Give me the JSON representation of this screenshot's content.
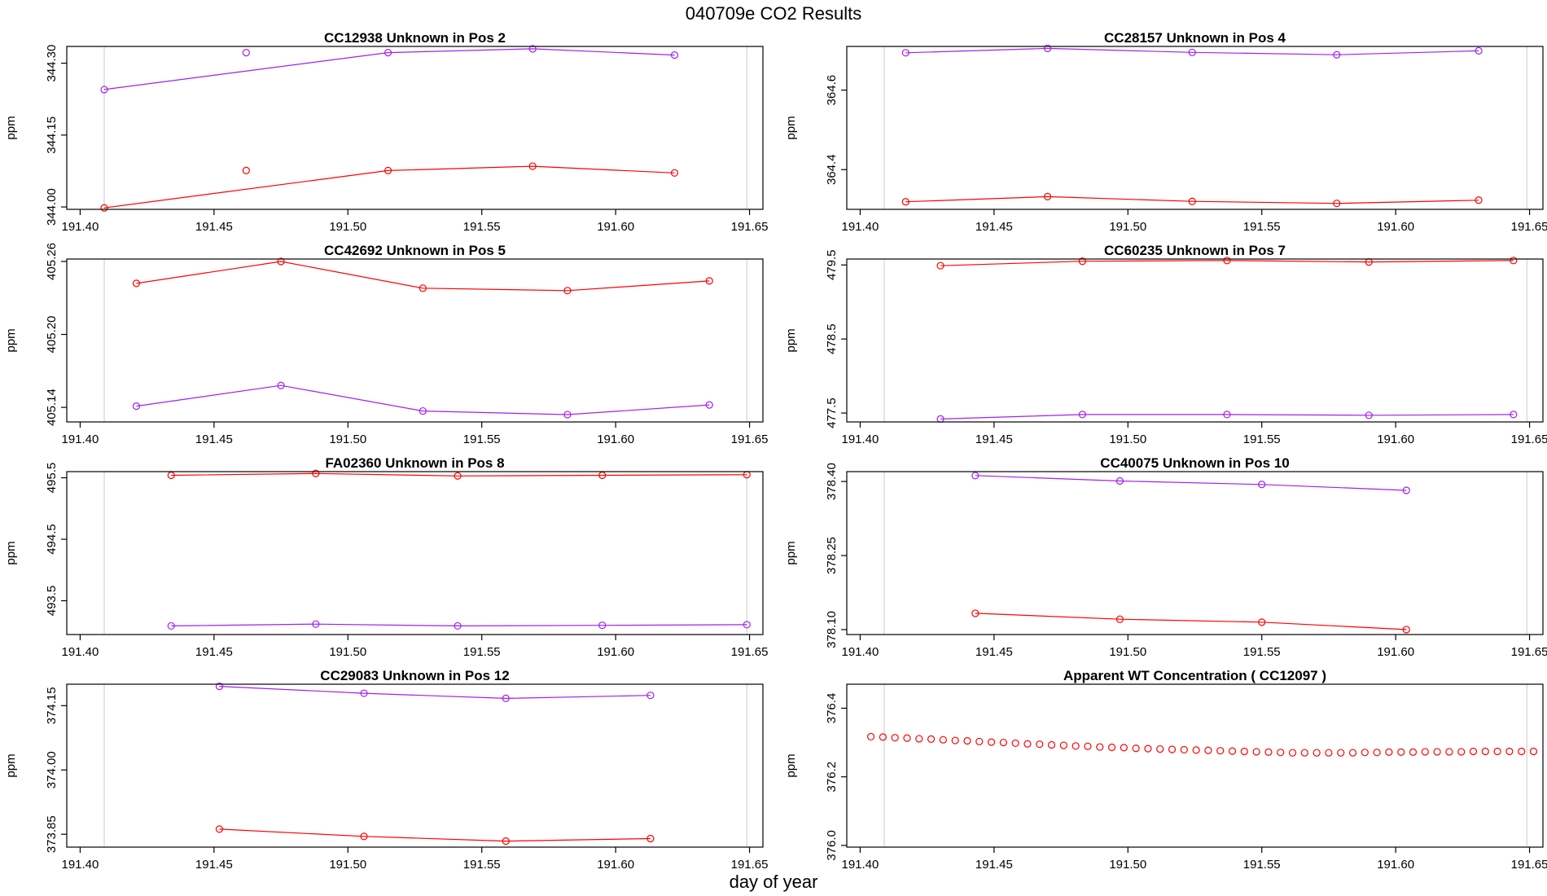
{
  "title": "040709e  CO2 Results",
  "xlabel": "day of year",
  "chart_data": [
    {
      "type": "scatter",
      "title": "CC12938    Unknown in Pos 2",
      "ylabel": "ppm",
      "xlim": [
        191.395,
        191.655
      ],
      "ylim": [
        343.995,
        344.335
      ],
      "xticks": [
        "191.40",
        "191.45",
        "191.50",
        "191.55",
        "191.60",
        "191.65"
      ],
      "yticks": [
        "344.00",
        "344.15",
        "344.30"
      ],
      "vlines": [
        191.409,
        191.649
      ],
      "series": [
        {
          "color": "#a020f0",
          "connected": true,
          "x": [
            191.409,
            191.515,
            191.569,
            191.622
          ],
          "y": [
            344.245,
            344.322,
            344.33,
            344.317
          ]
        },
        {
          "color": "#ff0000",
          "connected": true,
          "x": [
            191.409,
            191.515,
            191.569,
            191.622
          ],
          "y": [
            343.998,
            344.076,
            344.085,
            344.071
          ]
        },
        {
          "color": "#a020f0",
          "connected": false,
          "x": [
            191.462
          ],
          "y": [
            344.322
          ]
        },
        {
          "color": "#ff0000",
          "connected": false,
          "x": [
            191.462
          ],
          "y": [
            344.076
          ]
        }
      ]
    },
    {
      "type": "scatter",
      "title": "CC28157    Unknown in Pos 4",
      "ylabel": "ppm",
      "xlim": [
        191.395,
        191.655
      ],
      "ylim": [
        364.3,
        364.71
      ],
      "xticks": [
        "191.40",
        "191.45",
        "191.50",
        "191.55",
        "191.60",
        "191.65"
      ],
      "yticks": [
        "364.4",
        "364.6"
      ],
      "vlines": [
        191.409,
        191.649
      ],
      "series": [
        {
          "color": "#a020f0",
          "connected": true,
          "x": [
            191.417,
            191.47,
            191.524,
            191.578,
            191.631
          ],
          "y": [
            364.694,
            364.705,
            364.695,
            364.689,
            364.699
          ]
        },
        {
          "color": "#ff0000",
          "connected": true,
          "x": [
            191.417,
            191.47,
            191.524,
            191.578,
            191.631
          ],
          "y": [
            364.319,
            364.332,
            364.32,
            364.315,
            364.323
          ]
        }
      ]
    },
    {
      "type": "scatter",
      "title": "CC42692    Unknown in Pos 5",
      "ylabel": "ppm",
      "xlim": [
        191.395,
        191.655
      ],
      "ylim": [
        405.128,
        405.262
      ],
      "xticks": [
        "191.40",
        "191.45",
        "191.50",
        "191.55",
        "191.60",
        "191.65"
      ],
      "yticks": [
        "405.14",
        "405.20",
        "405.26"
      ],
      "vlines": [
        191.409,
        191.649
      ],
      "series": [
        {
          "color": "#ff0000",
          "connected": true,
          "x": [
            191.421,
            191.475,
            191.528,
            191.582,
            191.635
          ],
          "y": [
            405.242,
            405.26,
            405.238,
            405.236,
            405.244
          ]
        },
        {
          "color": "#a020f0",
          "connected": true,
          "x": [
            191.421,
            191.475,
            191.528,
            191.582,
            191.635
          ],
          "y": [
            405.141,
            405.158,
            405.137,
            405.134,
            405.142
          ]
        }
      ]
    },
    {
      "type": "scatter",
      "title": "CC60235    Unknown in Pos 7",
      "ylabel": "ppm",
      "xlim": [
        191.395,
        191.655
      ],
      "ylim": [
        477.38,
        479.58
      ],
      "xticks": [
        "191.40",
        "191.45",
        "191.50",
        "191.55",
        "191.60",
        "191.65"
      ],
      "yticks": [
        "477.5",
        "478.5",
        "479.5"
      ],
      "vlines": [
        191.409,
        191.649
      ],
      "series": [
        {
          "color": "#ff0000",
          "connected": true,
          "x": [
            191.43,
            191.483,
            191.537,
            191.59,
            191.644
          ],
          "y": [
            479.49,
            479.55,
            479.56,
            479.54,
            479.56
          ]
        },
        {
          "color": "#a020f0",
          "connected": true,
          "x": [
            191.43,
            191.483,
            191.537,
            191.59,
            191.644
          ],
          "y": [
            477.42,
            477.48,
            477.48,
            477.47,
            477.48
          ]
        }
      ]
    },
    {
      "type": "scatter",
      "title": "FA02360    Unknown in Pos 8",
      "ylabel": "ppm",
      "xlim": [
        191.395,
        191.655
      ],
      "ylim": [
        492.95,
        495.6
      ],
      "xticks": [
        "191.40",
        "191.45",
        "191.50",
        "191.55",
        "191.60",
        "191.65"
      ],
      "yticks": [
        "493.5",
        "494.5",
        "495.5"
      ],
      "vlines": [
        191.409,
        191.649
      ],
      "series": [
        {
          "color": "#ff0000",
          "connected": true,
          "x": [
            191.434,
            191.488,
            191.541,
            191.595,
            191.649
          ],
          "y": [
            495.54,
            495.57,
            495.53,
            495.54,
            495.55
          ]
        },
        {
          "color": "#a020f0",
          "connected": true,
          "x": [
            191.434,
            191.488,
            191.541,
            191.595,
            191.649
          ],
          "y": [
            493.09,
            493.12,
            493.09,
            493.1,
            493.11
          ]
        }
      ]
    },
    {
      "type": "scatter",
      "title": "CC40075    Unknown in Pos 10",
      "ylabel": "ppm",
      "xlim": [
        191.395,
        191.655
      ],
      "ylim": [
        378.09,
        378.42
      ],
      "xticks": [
        "191.40",
        "191.45",
        "191.50",
        "191.55",
        "191.60",
        "191.65"
      ],
      "yticks": [
        "378.10",
        "378.25",
        "378.40"
      ],
      "vlines": [
        191.409,
        191.649
      ],
      "series": [
        {
          "color": "#a020f0",
          "connected": true,
          "x": [
            191.443,
            191.497,
            191.55,
            191.604
          ],
          "y": [
            378.412,
            378.401,
            378.394,
            378.382
          ]
        },
        {
          "color": "#ff0000",
          "connected": true,
          "x": [
            191.443,
            191.497,
            191.55,
            191.604
          ],
          "y": [
            378.133,
            378.121,
            378.115,
            378.1
          ]
        }
      ]
    },
    {
      "type": "scatter",
      "title": "CC29083    Unknown in Pos 12",
      "ylabel": "ppm",
      "xlim": [
        191.395,
        191.655
      ],
      "ylim": [
        373.82,
        374.2
      ],
      "xticks": [
        "191.40",
        "191.45",
        "191.50",
        "191.55",
        "191.60",
        "191.65"
      ],
      "yticks": [
        "373.85",
        "374.00",
        "374.15"
      ],
      "vlines": [
        191.409,
        191.649
      ],
      "series": [
        {
          "color": "#a020f0",
          "connected": true,
          "x": [
            191.452,
            191.506,
            191.559,
            191.613
          ],
          "y": [
            374.195,
            374.179,
            374.167,
            374.174
          ]
        },
        {
          "color": "#ff0000",
          "connected": true,
          "x": [
            191.452,
            191.506,
            191.559,
            191.613
          ],
          "y": [
            373.862,
            373.845,
            373.834,
            373.84
          ]
        }
      ]
    },
    {
      "type": "scatter",
      "title": "Apparent WT Concentration ( CC12097 )",
      "ylabel": "ppm",
      "xlim": [
        191.395,
        191.655
      ],
      "ylim": [
        375.995,
        376.47
      ],
      "xticks": [
        "191.40",
        "191.45",
        "191.50",
        "191.55",
        "191.60",
        "191.65"
      ],
      "yticks": [
        "376.0",
        "376.2",
        "376.4"
      ],
      "vlines": [
        191.409,
        191.649
      ],
      "series": [
        {
          "color": "#ff0000",
          "connected": false,
          "x": [
            191.404,
            191.4085,
            191.413,
            191.4175,
            191.422,
            191.4265,
            191.431,
            191.4355,
            191.44,
            191.4445,
            191.449,
            191.4535,
            191.458,
            191.4625,
            191.467,
            191.4715,
            191.476,
            191.4805,
            191.485,
            191.4895,
            191.494,
            191.4985,
            191.503,
            191.5075,
            191.512,
            191.5165,
            191.521,
            191.5255,
            191.53,
            191.5345,
            191.539,
            191.5435,
            191.548,
            191.5525,
            191.557,
            191.5615,
            191.566,
            191.5705,
            191.575,
            191.5795,
            191.584,
            191.5885,
            191.593,
            191.5975,
            191.602,
            191.6065,
            191.611,
            191.6155,
            191.62,
            191.6245,
            191.629,
            191.6335,
            191.638,
            191.6425,
            191.647,
            191.6515
          ],
          "y": [
            376.317,
            376.316,
            376.314,
            376.313,
            376.311,
            376.31,
            376.308,
            376.306,
            376.305,
            376.303,
            376.301,
            376.3,
            376.298,
            376.296,
            376.295,
            376.293,
            376.292,
            376.29,
            376.289,
            376.287,
            376.286,
            376.285,
            376.283,
            376.282,
            376.281,
            376.28,
            376.279,
            376.278,
            376.277,
            376.276,
            376.275,
            376.274,
            376.273,
            376.272,
            376.271,
            376.27,
            376.27,
            376.27,
            376.27,
            376.27,
            376.27,
            376.271,
            376.271,
            376.272,
            376.272,
            376.272,
            376.273,
            376.273,
            376.273,
            376.273,
            376.274,
            376.274,
            376.274,
            376.274,
            376.274,
            376.274
          ]
        }
      ]
    }
  ]
}
